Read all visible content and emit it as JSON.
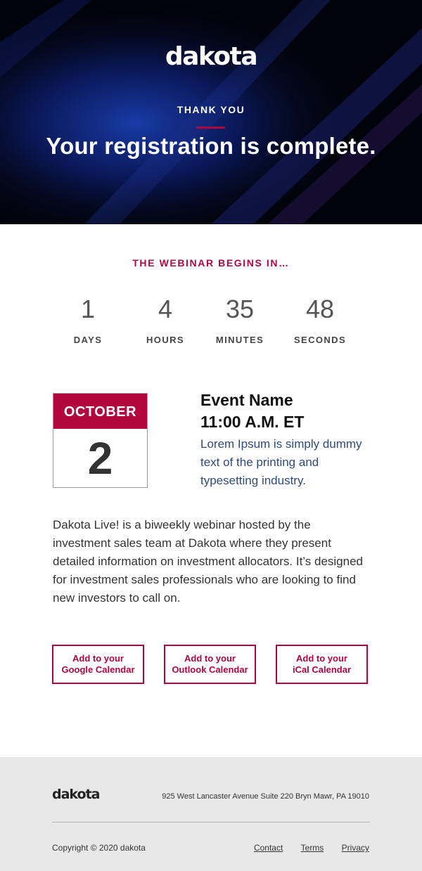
{
  "hero": {
    "logo": "dakota",
    "eyebrow": "THANK YOU",
    "headline": "Your registration is complete."
  },
  "countdown": {
    "heading": "THE WEBINAR BEGINS IN…",
    "units": [
      {
        "value": "1",
        "label": "DAYS"
      },
      {
        "value": "4",
        "label": "HOURS"
      },
      {
        "value": "35",
        "label": "MINUTES"
      },
      {
        "value": "48",
        "label": "SECONDS"
      }
    ]
  },
  "event": {
    "month": "OCTOBER",
    "day": "2",
    "name": "Event Name",
    "time": "11:00 A.M. ET",
    "description": "Lorem Ipsum is simply dummy text of the printing and typesetting industry."
  },
  "about": "Dakota Live! is a biweekly webinar hosted by the investment sales team at Dakota where they present detailed information on investment allocators. It’s designed for investment sales professionals who are looking to find new investors to call on.",
  "calendar_buttons": [
    {
      "line1": "Add to your",
      "line2": "Google Calendar"
    },
    {
      "line1": "Add to your",
      "line2": "Outlook Calendar"
    },
    {
      "line1": "Add to your",
      "line2": "iCal Calendar"
    }
  ],
  "footer": {
    "logo": "dakota",
    "address": "925 West Lancaster Avenue Suite 220  Bryn Mawr, PA 19010",
    "copyright": "Copyright © 2020 dakota",
    "links": [
      "Contact",
      "Terms",
      "Privacy"
    ]
  },
  "colors": {
    "accent": "#b3063e",
    "hero_background": "#02030a",
    "description_text": "#2e4a7d",
    "footer_background": "#e8e8e8"
  }
}
